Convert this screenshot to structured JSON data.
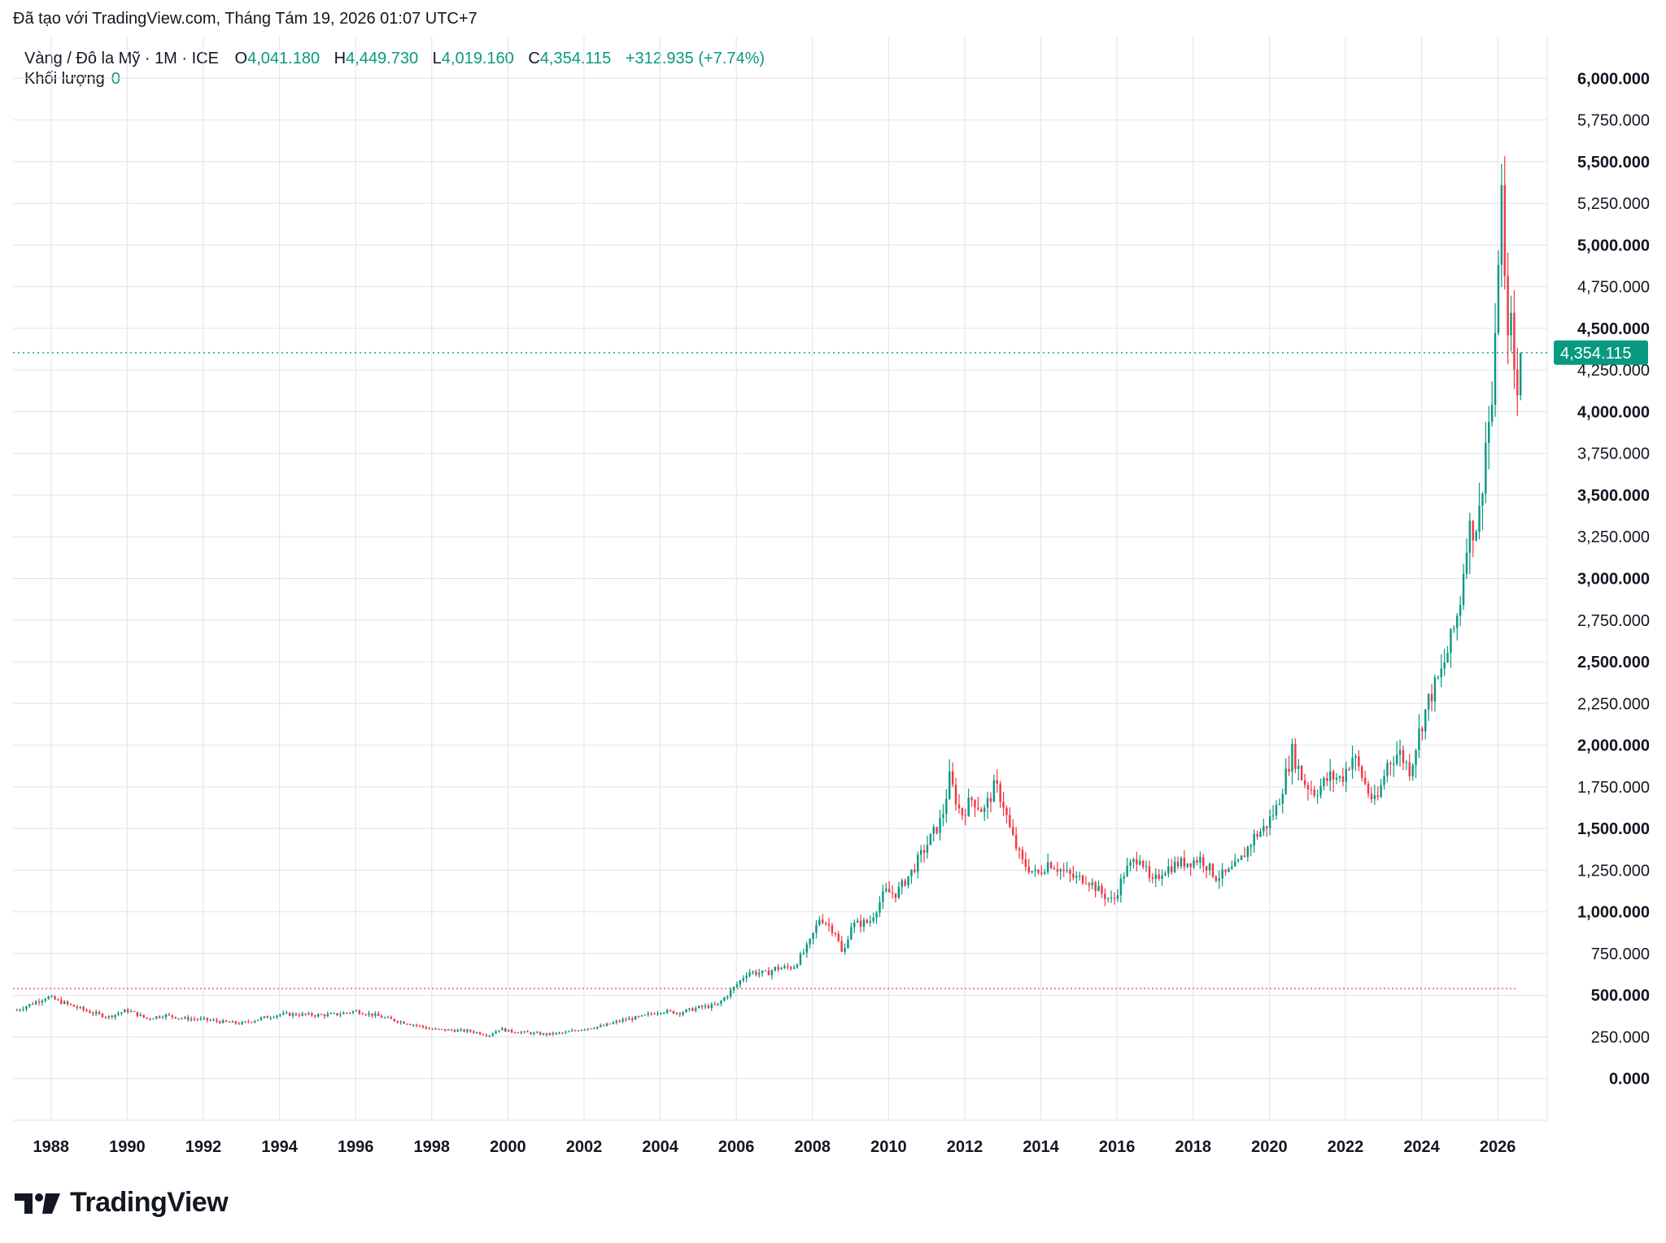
{
  "header": {
    "credit": "Đã tạo với TradingView.com, Tháng Tám 19, 2026 01:07 UTC+7"
  },
  "legend": {
    "symbol": "Vàng / Đô la Mỹ · 1M · ICE",
    "open_label": "O",
    "open": "4,041.180",
    "high_label": "H",
    "high": "4,449.730",
    "low_label": "L",
    "low": "4,019.160",
    "close_label": "C",
    "close": "4,354.115",
    "change": "+312.935 (+7.74%)",
    "volume_label": "Khối lượng",
    "volume": "0"
  },
  "price_tag": "4,354.115",
  "logo_text": "TradingView",
  "colors": {
    "up": "#089981",
    "down": "#F23645",
    "grid": "#E0E3EB",
    "axis_text": "#131722"
  },
  "chart_data": {
    "type": "candlestick",
    "title": "Vàng / Đô la Mỹ · 1M · ICE",
    "xlabel": "",
    "ylabel": "",
    "ylim": [
      -250,
      6250
    ],
    "xlim": [
      1987.0,
      2027.3
    ],
    "x_ticks": [
      "1988",
      "1990",
      "1992",
      "1994",
      "1996",
      "1998",
      "2000",
      "2002",
      "2004",
      "2006",
      "2008",
      "2010",
      "2012",
      "2014",
      "2016",
      "2018",
      "2020",
      "2022",
      "2024",
      "2026"
    ],
    "y_ticks": [
      {
        "value": 0,
        "label": "0.000",
        "bold": true
      },
      {
        "value": 250,
        "label": "250.000",
        "bold": false
      },
      {
        "value": 500,
        "label": "500.000",
        "bold": true
      },
      {
        "value": 750,
        "label": "750.000",
        "bold": false
      },
      {
        "value": 1000,
        "label": "1,000.000",
        "bold": true
      },
      {
        "value": 1250,
        "label": "1,250.000",
        "bold": false
      },
      {
        "value": 1500,
        "label": "1,500.000",
        "bold": true
      },
      {
        "value": 1750,
        "label": "1,750.000",
        "bold": false
      },
      {
        "value": 2000,
        "label": "2,000.000",
        "bold": true
      },
      {
        "value": 2250,
        "label": "2,250.000",
        "bold": false
      },
      {
        "value": 2500,
        "label": "2,500.000",
        "bold": true
      },
      {
        "value": 2750,
        "label": "2,750.000",
        "bold": false
      },
      {
        "value": 3000,
        "label": "3,000.000",
        "bold": true
      },
      {
        "value": 3250,
        "label": "3,250.000",
        "bold": false
      },
      {
        "value": 3500,
        "label": "3,500.000",
        "bold": true
      },
      {
        "value": 3750,
        "label": "3,750.000",
        "bold": false
      },
      {
        "value": 4000,
        "label": "4,000.000",
        "bold": true
      },
      {
        "value": 4250,
        "label": "4,250.000",
        "bold": false
      },
      {
        "value": 4500,
        "label": "4,500.000",
        "bold": true
      },
      {
        "value": 4750,
        "label": "4,750.000",
        "bold": false
      },
      {
        "value": 5000,
        "label": "5,000.000",
        "bold": true
      },
      {
        "value": 5250,
        "label": "5,250.000",
        "bold": false
      },
      {
        "value": 5500,
        "label": "5,500.000",
        "bold": true
      },
      {
        "value": 5750,
        "label": "5,750.000",
        "bold": false
      },
      {
        "value": 6000,
        "label": "6,000.000",
        "bold": true
      }
    ],
    "last_price": 4354.115,
    "ref_line": 540,
    "close_path_points": [
      [
        1987.1,
        410
      ],
      [
        1987.9,
        490
      ],
      [
        1988.5,
        440
      ],
      [
        1989.0,
        400
      ],
      [
        1989.5,
        370
      ],
      [
        1990.0,
        410
      ],
      [
        1990.5,
        360
      ],
      [
        1991.0,
        380
      ],
      [
        1991.5,
        360
      ],
      [
        1992.0,
        355
      ],
      [
        1992.5,
        340
      ],
      [
        1993.0,
        330
      ],
      [
        1993.5,
        360
      ],
      [
        1994.0,
        385
      ],
      [
        1994.5,
        385
      ],
      [
        1995.0,
        380
      ],
      [
        1995.5,
        385
      ],
      [
        1996.0,
        405
      ],
      [
        1996.5,
        380
      ],
      [
        1997.0,
        350
      ],
      [
        1997.5,
        325
      ],
      [
        1998.0,
        295
      ],
      [
        1998.5,
        290
      ],
      [
        1999.0,
        285
      ],
      [
        1999.5,
        260
      ],
      [
        1999.8,
        300
      ],
      [
        2000.0,
        285
      ],
      [
        2000.5,
        275
      ],
      [
        2001.0,
        265
      ],
      [
        2001.5,
        275
      ],
      [
        2002.0,
        300
      ],
      [
        2002.5,
        315
      ],
      [
        2003.0,
        350
      ],
      [
        2003.5,
        370
      ],
      [
        2004.0,
        405
      ],
      [
        2004.5,
        395
      ],
      [
        2005.0,
        425
      ],
      [
        2005.5,
        440
      ],
      [
        2006.0,
        560
      ],
      [
        2006.3,
        640
      ],
      [
        2006.8,
        630
      ],
      [
        2007.0,
        660
      ],
      [
        2007.5,
        670
      ],
      [
        2007.9,
        800
      ],
      [
        2008.2,
        970
      ],
      [
        2008.6,
        880
      ],
      [
        2008.8,
        730
      ],
      [
        2009.0,
        920
      ],
      [
        2009.5,
        940
      ],
      [
        2009.9,
        1120
      ],
      [
        2010.2,
        1110
      ],
      [
        2010.6,
        1240
      ],
      [
        2011.0,
        1400
      ],
      [
        2011.4,
        1560
      ],
      [
        2011.6,
        1800
      ],
      [
        2011.9,
        1580
      ],
      [
        2012.2,
        1680
      ],
      [
        2012.5,
        1600
      ],
      [
        2012.8,
        1760
      ],
      [
        2013.0,
        1660
      ],
      [
        2013.2,
        1480
      ],
      [
        2013.5,
        1300
      ],
      [
        2013.9,
        1220
      ],
      [
        2014.2,
        1300
      ],
      [
        2014.6,
        1240
      ],
      [
        2014.9,
        1200
      ],
      [
        2015.2,
        1200
      ],
      [
        2015.6,
        1110
      ],
      [
        2015.9,
        1060
      ],
      [
        2016.2,
        1240
      ],
      [
        2016.6,
        1340
      ],
      [
        2016.9,
        1160
      ],
      [
        2017.2,
        1250
      ],
      [
        2017.6,
        1290
      ],
      [
        2017.9,
        1300
      ],
      [
        2018.2,
        1320
      ],
      [
        2018.6,
        1210
      ],
      [
        2018.9,
        1230
      ],
      [
        2019.2,
        1290
      ],
      [
        2019.6,
        1450
      ],
      [
        2019.9,
        1510
      ],
      [
        2020.2,
        1630
      ],
      [
        2020.6,
        1960
      ],
      [
        2020.9,
        1780
      ],
      [
        2021.2,
        1720
      ],
      [
        2021.6,
        1810
      ],
      [
        2021.9,
        1800
      ],
      [
        2022.2,
        1940
      ],
      [
        2022.6,
        1720
      ],
      [
        2022.8,
        1640
      ],
      [
        2023.1,
        1890
      ],
      [
        2023.4,
        1960
      ],
      [
        2023.7,
        1850
      ],
      [
        2023.9,
        2050
      ],
      [
        2024.2,
        2280
      ],
      [
        2024.5,
        2420
      ],
      [
        2024.8,
        2650
      ],
      [
        2025.0,
        2840
      ],
      [
        2025.2,
        3280
      ],
      [
        2025.5,
        3340
      ],
      [
        2025.7,
        3860
      ],
      [
        2025.9,
        4100
      ],
      [
        2026.0,
        4900
      ],
      [
        2026.1,
        5300
      ],
      [
        2026.2,
        4600
      ],
      [
        2026.35,
        4500
      ],
      [
        2026.5,
        4040
      ],
      [
        2026.6,
        4354
      ]
    ]
  }
}
